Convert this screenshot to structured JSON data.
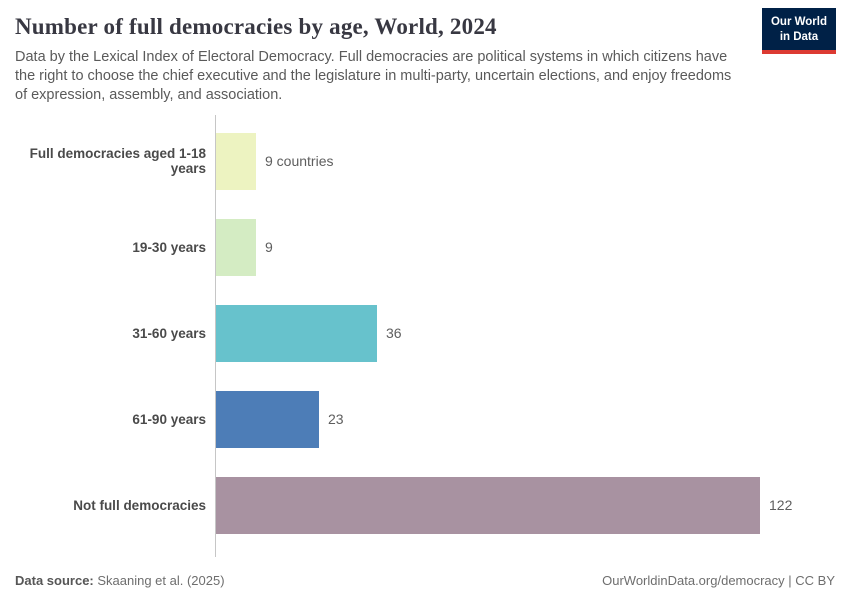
{
  "header": {
    "title": "Number of full democracies by age, World, 2024",
    "subtitle": "Data by the Lexical Index of Electoral Democracy. Full democracies are political systems in which citizens have the right to choose the chief executive and the legislature in multi-party, uncertain elections, and enjoy freedoms of expression, assembly, and association."
  },
  "logo": {
    "line1": "Our World",
    "line2": "in Data",
    "bg_color": "#002147",
    "accent_color": "#dc3a32"
  },
  "chart_data": {
    "type": "bar",
    "orientation": "horizontal",
    "title": "Number of full democracies by age, World, 2024",
    "categories": [
      "Full democracies aged 1-18 years",
      "19-30 years",
      "31-60 years",
      "61-90 years",
      "Not full democracies"
    ],
    "values": [
      9,
      9,
      36,
      23,
      122
    ],
    "value_labels": [
      "9 countries",
      "9",
      "36",
      "23",
      "122"
    ],
    "bar_colors": [
      "#edf3c1",
      "#d4ecc3",
      "#67c2cc",
      "#4d7db7",
      "#a892a1"
    ],
    "xlabel": "",
    "ylabel": "",
    "xlim": [
      0,
      122
    ],
    "grid": false,
    "legend": "none",
    "axis_line_color": "#c6c6c6"
  },
  "footer": {
    "source_label": "Data source:",
    "source_value": " Skaaning et al. (2025)",
    "credit": "OurWorldinData.org/democracy | CC BY"
  }
}
